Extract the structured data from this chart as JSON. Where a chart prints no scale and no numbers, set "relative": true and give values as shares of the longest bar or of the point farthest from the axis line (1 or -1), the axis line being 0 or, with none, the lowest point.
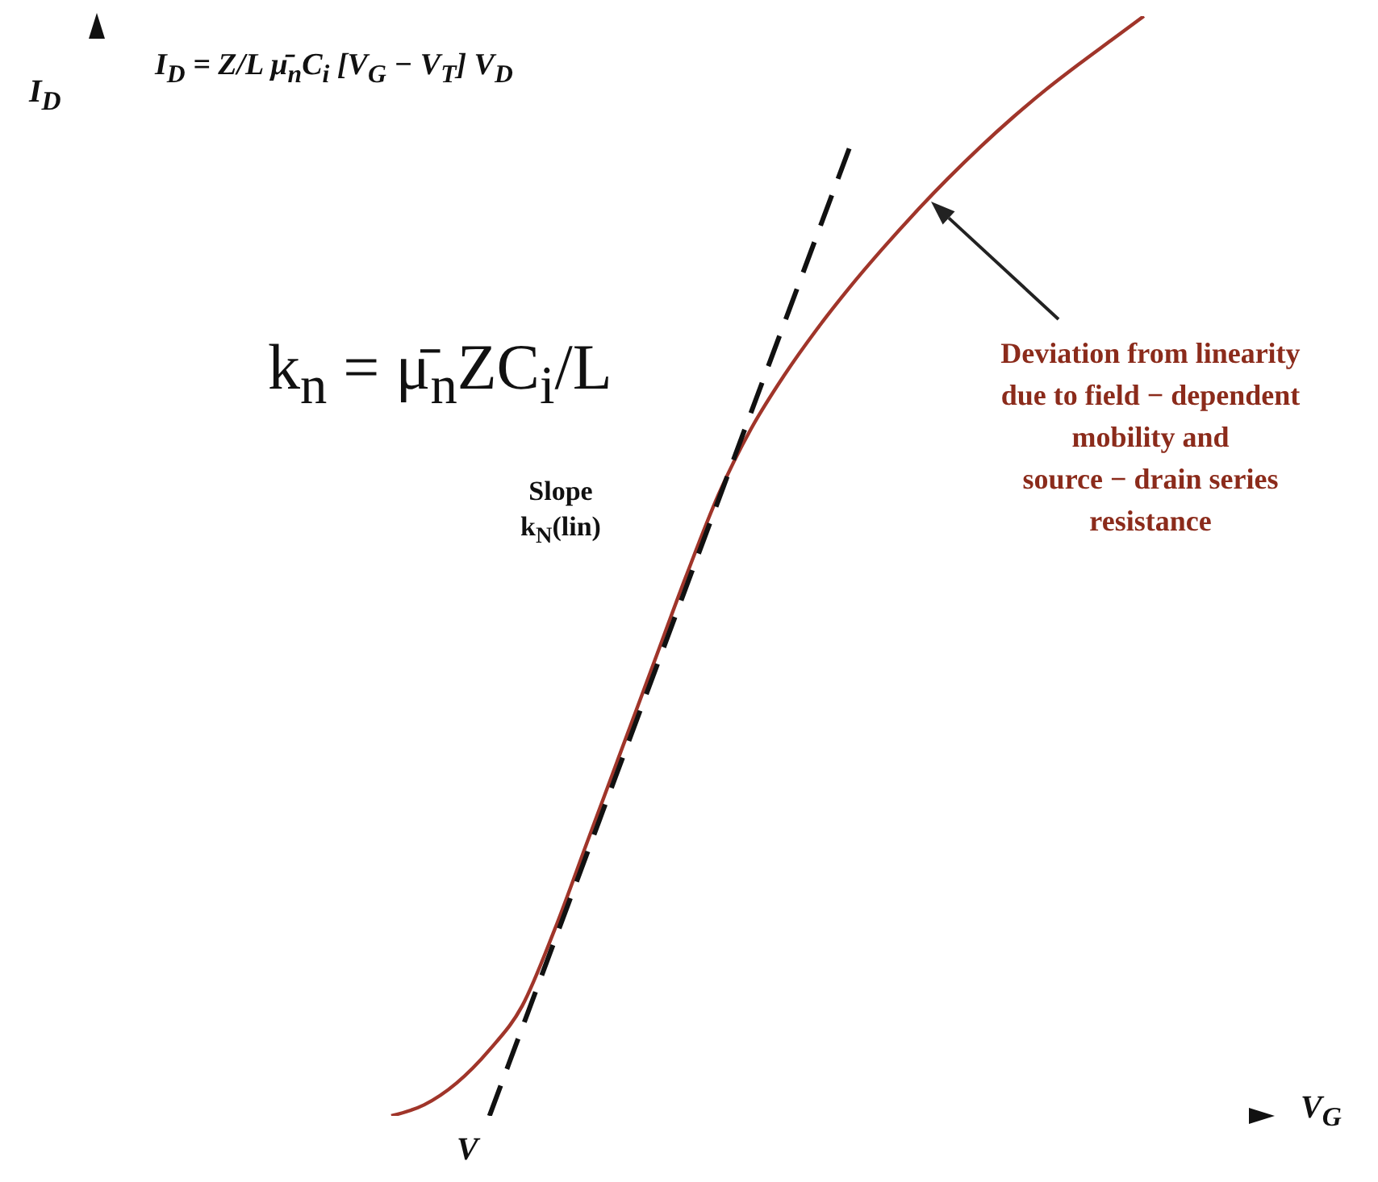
{
  "chart_data": {
    "type": "line",
    "relative": true,
    "xlabel": "V$_{G}$",
    "ylabel": "I$_{D}$",
    "marker": "none",
    "categories": [
      null,
      null,
      null,
      null,
      null,
      null,
      null,
      null,
      null,
      null,
      null,
      null,
      null,
      null,
      null,
      null,
      null,
      null,
      null,
      null,
      null,
      null,
      null,
      null,
      null,
      null,
      null,
      null,
      null,
      null,
      null,
      null,
      null,
      null,
      null,
      null,
      null
    ],
    "series": [
      {
        "color": "#a0352a",
        "line_style": "solid",
        "values": [
          null,
          null,
          null,
          null,
          null,
          null,
          null,
          null,
          null,
          0,
          0.01,
          0.03,
          0.06,
          0.1,
          0.17,
          0.25,
          0.33,
          0.41,
          0.49,
          0.565,
          0.625,
          0.673,
          0.715,
          0.753,
          0.788,
          0.821,
          0.852,
          0.881,
          0.908,
          0.933,
          0.956,
          0.978,
          1,
          null,
          null,
          null,
          null
        ]
      },
      {
        "type": "line",
        "color": "#111111",
        "line_style": "dashed",
        "values": [
          null,
          null,
          null,
          null,
          null,
          null,
          null,
          null,
          null,
          null,
          null,
          null,
          0,
          0.08,
          0.16,
          0.24,
          0.32,
          0.4,
          0.48,
          0.56,
          0.64,
          0.72,
          0.8,
          0.88,
          null,
          null,
          null,
          null,
          null,
          null,
          null,
          null,
          null,
          null,
          null,
          null,
          null
        ]
      }
    ],
    "annotations": [
      "I$_{D}$ = Z/L μ̄$_{n}$C$_{i}$ [V$_{G}$ − V$_{T}$] V$_{D}$",
      "k$_{n}$ = μ̄$_{n}$ZC$_{i}$/L",
      "Slope\nk$_{N}$(lin)",
      "Deviation from linearity\ndue to field − dependent\nmobility and\nsource − drain series\nresistance",
      "V"
    ]
  }
}
